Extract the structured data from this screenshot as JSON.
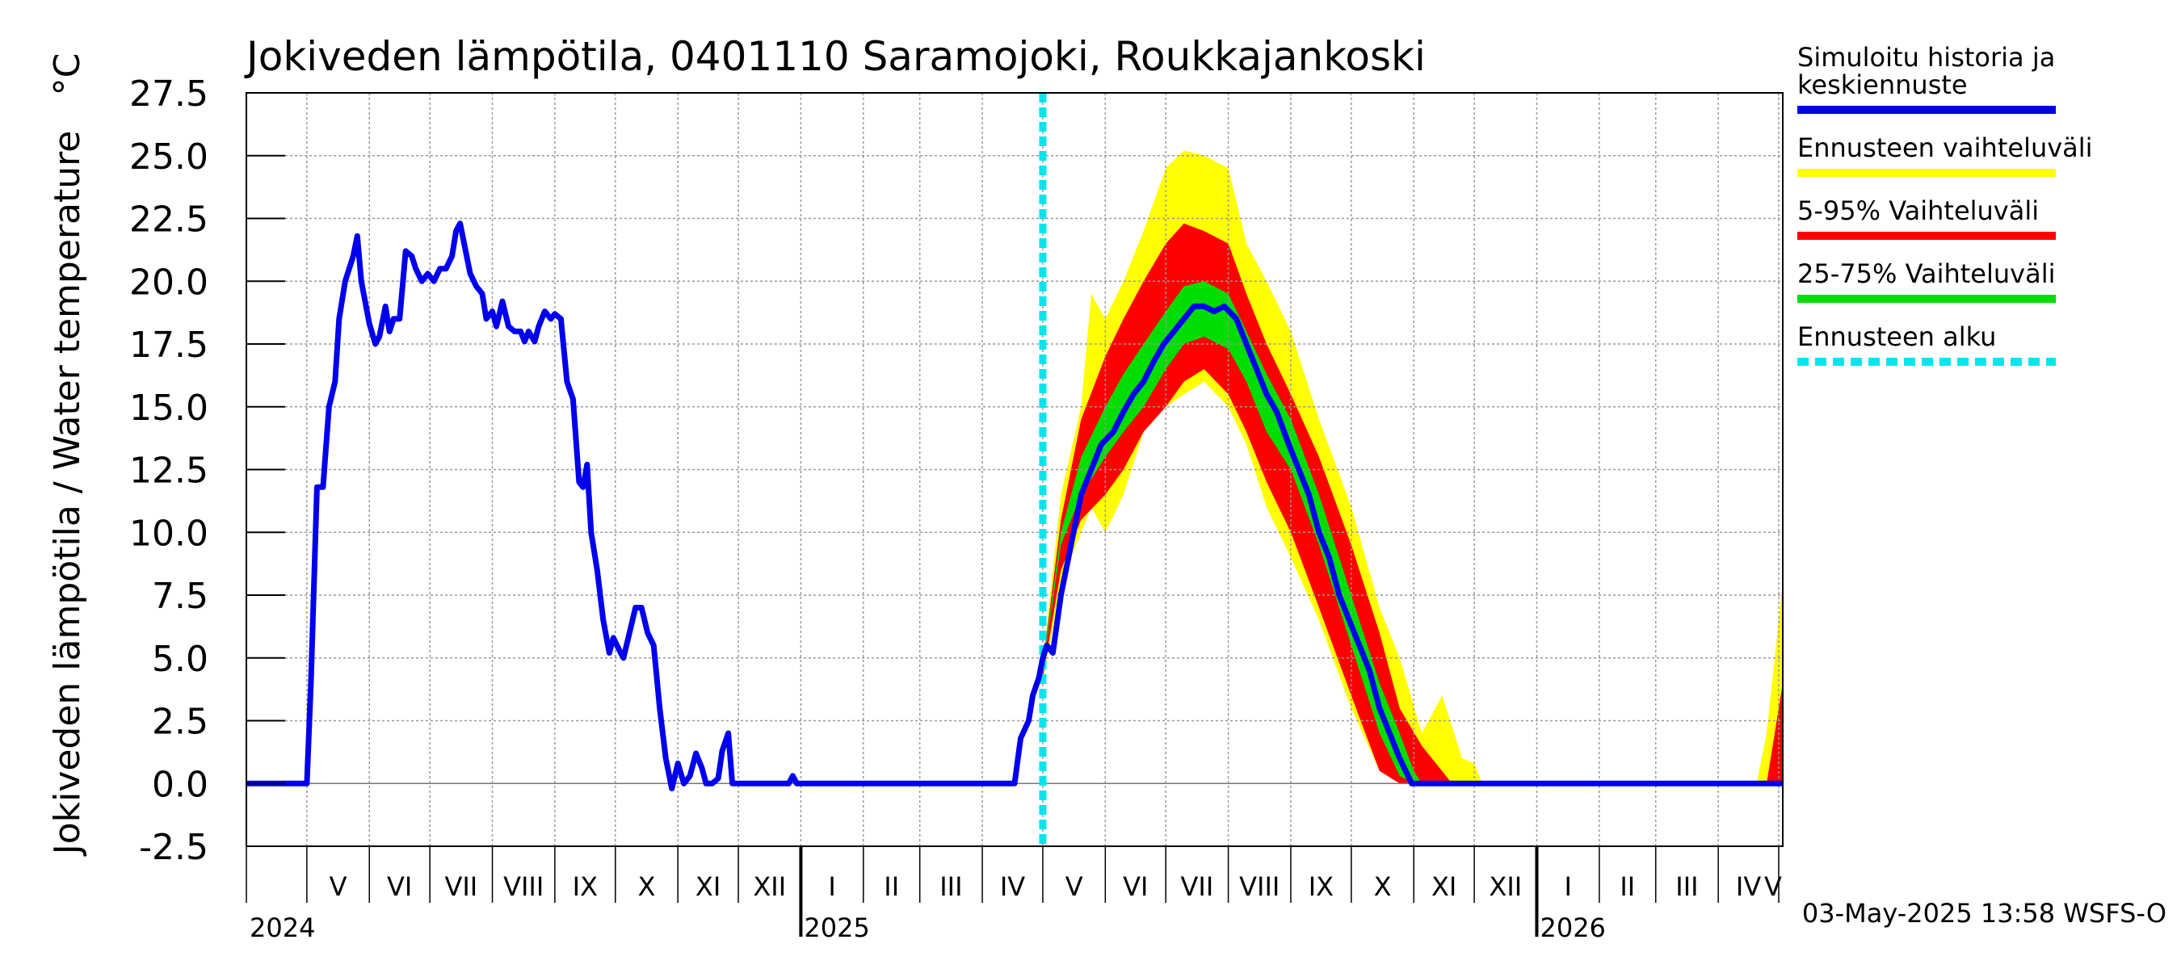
{
  "chart_data": {
    "type": "line",
    "title": "Jokiveden lämpötila, 0401110 Saramojoki, Roukkajankoski",
    "ylabel": "Jokiveden lämpötila / Water temperature",
    "yunit": "°C",
    "ylim": [
      -2.5,
      27.5
    ],
    "yticks": [
      "27.5",
      "25.0",
      "22.5",
      "20.0",
      "17.5",
      "15.0",
      "12.5",
      "10.0",
      "7.5",
      "5.0",
      "2.5",
      "0.0",
      "-2.5"
    ],
    "xlim": [
      "2024-04-01",
      "2026-05-03"
    ],
    "grid": true,
    "legend_position": "right",
    "months": [
      {
        "label": "V",
        "date": "2024-05-01"
      },
      {
        "label": "VI",
        "date": "2024-06-01"
      },
      {
        "label": "VII",
        "date": "2024-07-01"
      },
      {
        "label": "VIII",
        "date": "2024-08-01"
      },
      {
        "label": "IX",
        "date": "2024-09-01"
      },
      {
        "label": "X",
        "date": "2024-10-01"
      },
      {
        "label": "XI",
        "date": "2024-11-01"
      },
      {
        "label": "XII",
        "date": "2024-12-01"
      },
      {
        "label": "I",
        "date": "2025-01-01"
      },
      {
        "label": "II",
        "date": "2025-02-01"
      },
      {
        "label": "III",
        "date": "2025-03-01"
      },
      {
        "label": "IV",
        "date": "2025-04-01"
      },
      {
        "label": "V",
        "date": "2025-05-01"
      },
      {
        "label": "VI",
        "date": "2025-06-01"
      },
      {
        "label": "VII",
        "date": "2025-07-01"
      },
      {
        "label": "VIII",
        "date": "2025-08-01"
      },
      {
        "label": "IX",
        "date": "2025-09-01"
      },
      {
        "label": "X",
        "date": "2025-10-01"
      },
      {
        "label": "XI",
        "date": "2025-11-01"
      },
      {
        "label": "XII",
        "date": "2025-12-01"
      },
      {
        "label": "I",
        "date": "2026-01-01"
      },
      {
        "label": "II",
        "date": "2026-02-01"
      },
      {
        "label": "III",
        "date": "2026-03-01"
      },
      {
        "label": "IV",
        "date": "2026-04-01"
      },
      {
        "label": "V",
        "date": "2026-05-01"
      }
    ],
    "years": [
      {
        "label": "2024",
        "date": "2024-04-01"
      },
      {
        "label": "2025",
        "date": "2025-01-01"
      },
      {
        "label": "2026",
        "date": "2026-01-01"
      }
    ],
    "forecast_start": "2025-05-01",
    "series": [
      {
        "name": "Simuloitu historia ja keskiennuste",
        "color": "#0000ee",
        "points": [
          [
            "2024-04-01",
            0.0
          ],
          [
            "2024-05-01",
            0.0
          ],
          [
            "2024-05-03",
            4.0
          ],
          [
            "2024-05-06",
            11.8
          ],
          [
            "2024-05-09",
            11.8
          ],
          [
            "2024-05-12",
            15.0
          ],
          [
            "2024-05-15",
            16.0
          ],
          [
            "2024-05-17",
            18.5
          ],
          [
            "2024-05-20",
            20.0
          ],
          [
            "2024-05-24",
            21.0
          ],
          [
            "2024-05-26",
            21.8
          ],
          [
            "2024-05-28",
            20.0
          ],
          [
            "2024-06-01",
            18.3
          ],
          [
            "2024-06-04",
            17.5
          ],
          [
            "2024-06-06",
            17.8
          ],
          [
            "2024-06-09",
            19.0
          ],
          [
            "2024-06-11",
            18.0
          ],
          [
            "2024-06-13",
            18.5
          ],
          [
            "2024-06-16",
            18.5
          ],
          [
            "2024-06-19",
            21.2
          ],
          [
            "2024-06-22",
            21.0
          ],
          [
            "2024-06-24",
            20.5
          ],
          [
            "2024-06-27",
            20.0
          ],
          [
            "2024-06-30",
            20.3
          ],
          [
            "2024-07-03",
            20.0
          ],
          [
            "2024-07-06",
            20.5
          ],
          [
            "2024-07-09",
            20.5
          ],
          [
            "2024-07-12",
            21.0
          ],
          [
            "2024-07-14",
            22.0
          ],
          [
            "2024-07-16",
            22.3
          ],
          [
            "2024-07-18",
            21.5
          ],
          [
            "2024-07-21",
            20.3
          ],
          [
            "2024-07-24",
            19.8
          ],
          [
            "2024-07-27",
            19.5
          ],
          [
            "2024-07-29",
            18.5
          ],
          [
            "2024-08-01",
            18.8
          ],
          [
            "2024-08-03",
            18.2
          ],
          [
            "2024-08-06",
            19.2
          ],
          [
            "2024-08-09",
            18.2
          ],
          [
            "2024-08-12",
            18.0
          ],
          [
            "2024-08-15",
            18.0
          ],
          [
            "2024-08-17",
            17.6
          ],
          [
            "2024-08-19",
            18.0
          ],
          [
            "2024-08-22",
            17.6
          ],
          [
            "2024-08-24",
            18.2
          ],
          [
            "2024-08-27",
            18.8
          ],
          [
            "2024-08-30",
            18.5
          ],
          [
            "2024-09-01",
            18.7
          ],
          [
            "2024-09-04",
            18.5
          ],
          [
            "2024-09-07",
            16.0
          ],
          [
            "2024-09-10",
            15.3
          ],
          [
            "2024-09-13",
            12.0
          ],
          [
            "2024-09-15",
            11.8
          ],
          [
            "2024-09-17",
            12.7
          ],
          [
            "2024-09-19",
            10.0
          ],
          [
            "2024-09-22",
            8.5
          ],
          [
            "2024-09-25",
            6.5
          ],
          [
            "2024-09-28",
            5.2
          ],
          [
            "2024-09-30",
            5.8
          ],
          [
            "2024-10-03",
            5.3
          ],
          [
            "2024-10-05",
            5.0
          ],
          [
            "2024-10-08",
            6.0
          ],
          [
            "2024-10-11",
            7.0
          ],
          [
            "2024-10-14",
            7.0
          ],
          [
            "2024-10-17",
            6.0
          ],
          [
            "2024-10-20",
            5.5
          ],
          [
            "2024-10-23",
            3.0
          ],
          [
            "2024-10-26",
            1.0
          ],
          [
            "2024-10-29",
            -0.2
          ],
          [
            "2024-11-01",
            0.8
          ],
          [
            "2024-11-04",
            0.0
          ],
          [
            "2024-11-07",
            0.3
          ],
          [
            "2024-11-10",
            1.2
          ],
          [
            "2024-11-13",
            0.6
          ],
          [
            "2024-11-15",
            0.0
          ],
          [
            "2024-11-18",
            0.0
          ],
          [
            "2024-11-21",
            0.2
          ],
          [
            "2024-11-23",
            1.3
          ],
          [
            "2024-11-26",
            2.0
          ],
          [
            "2024-11-28",
            0.0
          ],
          [
            "2024-12-01",
            0.0
          ],
          [
            "2024-12-26",
            0.0
          ],
          [
            "2024-12-28",
            0.3
          ],
          [
            "2024-12-30",
            0.0
          ],
          [
            "2025-04-17",
            0.0
          ],
          [
            "2025-04-20",
            1.8
          ],
          [
            "2025-04-24",
            2.5
          ],
          [
            "2025-04-26",
            3.5
          ],
          [
            "2025-04-29",
            4.2
          ],
          [
            "2025-05-01",
            5.0
          ],
          [
            "2025-05-03",
            5.5
          ],
          [
            "2025-05-06",
            5.2
          ],
          [
            "2025-05-10",
            7.5
          ],
          [
            "2025-05-15",
            9.5
          ],
          [
            "2025-05-20",
            11.5
          ],
          [
            "2025-05-25",
            12.5
          ],
          [
            "2025-05-30",
            13.5
          ],
          [
            "2025-06-05",
            14.0
          ],
          [
            "2025-06-10",
            14.8
          ],
          [
            "2025-06-15",
            15.5
          ],
          [
            "2025-06-20",
            16.0
          ],
          [
            "2025-06-25",
            16.8
          ],
          [
            "2025-06-30",
            17.5
          ],
          [
            "2025-07-05",
            18.0
          ],
          [
            "2025-07-10",
            18.5
          ],
          [
            "2025-07-15",
            19.0
          ],
          [
            "2025-07-20",
            19.0
          ],
          [
            "2025-07-25",
            18.8
          ],
          [
            "2025-07-30",
            19.0
          ],
          [
            "2025-08-05",
            18.5
          ],
          [
            "2025-08-10",
            17.5
          ],
          [
            "2025-08-15",
            16.5
          ],
          [
            "2025-08-20",
            15.5
          ],
          [
            "2025-08-25",
            14.8
          ],
          [
            "2025-08-31",
            13.5
          ],
          [
            "2025-09-05",
            12.5
          ],
          [
            "2025-09-10",
            11.5
          ],
          [
            "2025-09-15",
            10.0
          ],
          [
            "2025-09-20",
            9.0
          ],
          [
            "2025-09-25",
            7.5
          ],
          [
            "2025-09-30",
            6.5
          ],
          [
            "2025-10-05",
            5.5
          ],
          [
            "2025-10-10",
            4.5
          ],
          [
            "2025-10-15",
            3.0
          ],
          [
            "2025-10-20",
            2.0
          ],
          [
            "2025-10-25",
            1.0
          ],
          [
            "2025-10-31",
            0.0
          ],
          [
            "2026-05-03",
            0.0
          ]
        ]
      },
      {
        "name": "Ennusteen vaihteluväli",
        "color": "#ffff00",
        "band": [
          [
            "2025-05-01",
            4.0,
            4.8
          ],
          [
            "2025-05-10",
            8.0,
            11.5
          ],
          [
            "2025-05-20",
            10.0,
            15.0
          ],
          [
            "2025-05-25",
            11.0,
            19.5
          ],
          [
            "2025-06-01",
            10.0,
            18.5
          ],
          [
            "2025-06-10",
            11.5,
            20.0
          ],
          [
            "2025-06-20",
            14.0,
            22.0
          ],
          [
            "2025-07-01",
            15.0,
            24.5
          ],
          [
            "2025-07-10",
            15.5,
            25.2
          ],
          [
            "2025-07-20",
            16.0,
            25.0
          ],
          [
            "2025-08-01",
            15.0,
            24.5
          ],
          [
            "2025-08-10",
            13.5,
            21.5
          ],
          [
            "2025-08-20",
            11.0,
            20.0
          ],
          [
            "2025-09-01",
            9.0,
            18.0
          ],
          [
            "2025-09-15",
            6.5,
            14.5
          ],
          [
            "2025-10-01",
            3.0,
            11.0
          ],
          [
            "2025-10-15",
            0.5,
            7.0
          ],
          [
            "2025-10-25",
            0.0,
            5.0
          ],
          [
            "2025-11-05",
            0.0,
            2.0
          ],
          [
            "2025-11-15",
            0.0,
            3.5
          ],
          [
            "2025-11-25",
            0.0,
            1.0
          ],
          [
            "2025-12-01",
            0.0,
            0.8
          ],
          [
            "2025-12-05",
            0.0,
            0.0
          ],
          [
            "2026-04-20",
            0.0,
            0.0
          ],
          [
            "2026-04-25",
            0.0,
            2.0
          ],
          [
            "2026-05-03",
            0.0,
            8.0
          ]
        ]
      },
      {
        "name": "5-95% Vaihteluväli",
        "color": "#ff0000",
        "band": [
          [
            "2025-05-01",
            4.2,
            4.7
          ],
          [
            "2025-05-10",
            8.5,
            10.5
          ],
          [
            "2025-05-20",
            10.5,
            14.5
          ],
          [
            "2025-06-01",
            11.5,
            17.0
          ],
          [
            "2025-06-10",
            12.5,
            18.5
          ],
          [
            "2025-06-20",
            14.0,
            20.0
          ],
          [
            "2025-07-01",
            15.0,
            21.5
          ],
          [
            "2025-07-10",
            16.0,
            22.3
          ],
          [
            "2025-07-20",
            16.5,
            22.0
          ],
          [
            "2025-08-01",
            15.5,
            21.5
          ],
          [
            "2025-08-10",
            14.0,
            19.5
          ],
          [
            "2025-08-20",
            12.0,
            17.5
          ],
          [
            "2025-09-01",
            10.0,
            15.5
          ],
          [
            "2025-09-15",
            7.0,
            13.0
          ],
          [
            "2025-10-01",
            3.5,
            9.5
          ],
          [
            "2025-10-15",
            0.5,
            6.0
          ],
          [
            "2025-10-25",
            0.0,
            3.0
          ],
          [
            "2025-11-05",
            0.0,
            1.5
          ],
          [
            "2025-11-15",
            0.0,
            0.5
          ],
          [
            "2025-11-20",
            0.0,
            0.0
          ],
          [
            "2026-04-25",
            0.0,
            0.0
          ],
          [
            "2026-05-03",
            0.0,
            4.0
          ]
        ]
      },
      {
        "name": "25-75% Vaihteluväli",
        "color": "#00dd00",
        "band": [
          [
            "2025-05-01",
            4.5,
            4.6
          ],
          [
            "2025-05-10",
            9.5,
            10.0
          ],
          [
            "2025-05-20",
            11.5,
            13.0
          ],
          [
            "2025-06-01",
            13.0,
            15.0
          ],
          [
            "2025-06-10",
            14.0,
            16.3
          ],
          [
            "2025-06-20",
            15.0,
            17.5
          ],
          [
            "2025-07-01",
            16.5,
            18.8
          ],
          [
            "2025-07-10",
            17.5,
            19.8
          ],
          [
            "2025-07-20",
            17.8,
            20.0
          ],
          [
            "2025-08-01",
            17.3,
            19.5
          ],
          [
            "2025-08-10",
            16.0,
            18.0
          ],
          [
            "2025-08-20",
            14.0,
            16.3
          ],
          [
            "2025-09-01",
            12.5,
            14.5
          ],
          [
            "2025-09-15",
            9.5,
            11.5
          ],
          [
            "2025-10-01",
            5.5,
            7.5
          ],
          [
            "2025-10-15",
            2.0,
            4.0
          ],
          [
            "2025-10-25",
            0.3,
            2.0
          ],
          [
            "2025-11-01",
            0.0,
            0.5
          ],
          [
            "2025-11-05",
            0.0,
            0.0
          ],
          [
            "2026-05-03",
            0.0,
            0.0
          ]
        ]
      }
    ],
    "legend": [
      {
        "label": "Simuloitu historia ja keskiennuste",
        "lines": [
          "Simuloitu historia ja",
          "keskiennuste"
        ],
        "color": "#0000ee",
        "style": "solid"
      },
      {
        "label": "Ennusteen vaihteluväli",
        "lines": [
          "Ennusteen vaihteluväli"
        ],
        "color": "#ffff00",
        "style": "solid"
      },
      {
        "label": "5-95% Vaihteluväli",
        "lines": [
          "5-95% Vaihteluväli"
        ],
        "color": "#ff0000",
        "style": "solid"
      },
      {
        "label": "25-75% Vaihteluväli",
        "lines": [
          "25-75% Vaihteluväli"
        ],
        "color": "#00dd00",
        "style": "solid"
      },
      {
        "label": "Ennusteen alku",
        "lines": [
          "Ennusteen alku"
        ],
        "color": "#00e5ee",
        "style": "dashed"
      }
    ],
    "footer": "03-May-2025 13:58 WSFS-O"
  }
}
